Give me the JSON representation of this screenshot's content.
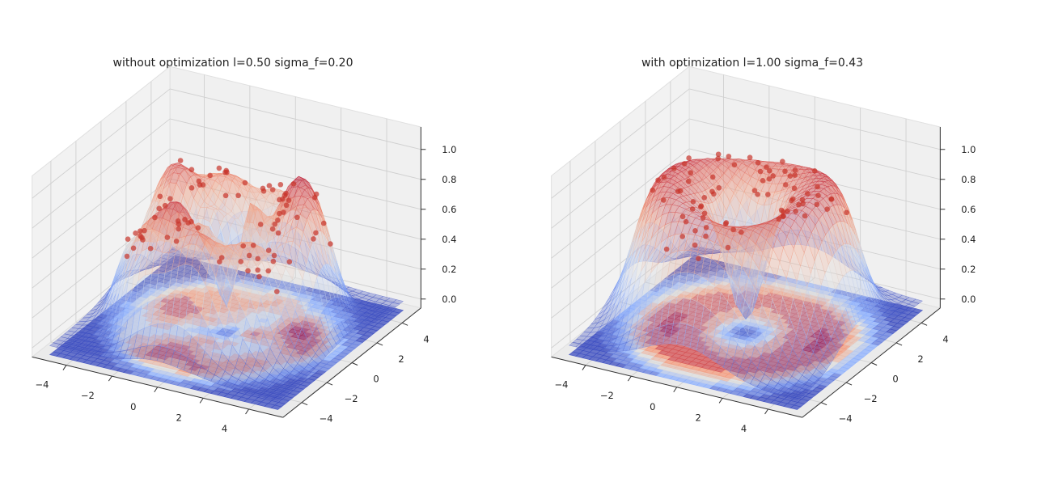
{
  "chart_data": [
    {
      "type": "surface",
      "title": "without optimization l=0.50 sigma_f=0.20",
      "params": {
        "l": 0.5,
        "sigma_f": 0.2
      },
      "xticks": [
        "−4",
        "−2",
        "0",
        "2",
        "4"
      ],
      "yticks": [
        "−4",
        "−2",
        "0",
        "2",
        "4"
      ],
      "zticks": [
        "0.0",
        "0.2",
        "0.4",
        "0.6",
        "0.8",
        "1.0"
      ],
      "xlim": [
        -5,
        5
      ],
      "ylim": [
        -5,
        5
      ],
      "zlim": [
        0,
        1.1
      ],
      "colormap": "coolwarm",
      "point_color": "#c8352b"
    },
    {
      "type": "surface",
      "title": "with optimization l=1.00 sigma_f=0.43",
      "params": {
        "l": 1.0,
        "sigma_f": 0.43
      },
      "xticks": [
        "−4",
        "−2",
        "0",
        "2",
        "4"
      ],
      "yticks": [
        "−4",
        "−2",
        "0",
        "2",
        "4"
      ],
      "zticks": [
        "0.0",
        "0.2",
        "0.4",
        "0.6",
        "0.8",
        "1.0"
      ],
      "xlim": [
        -5,
        5
      ],
      "ylim": [
        -5,
        5
      ],
      "zlim": [
        0,
        1.1
      ],
      "colormap": "coolwarm",
      "point_color": "#c8352b"
    }
  ]
}
